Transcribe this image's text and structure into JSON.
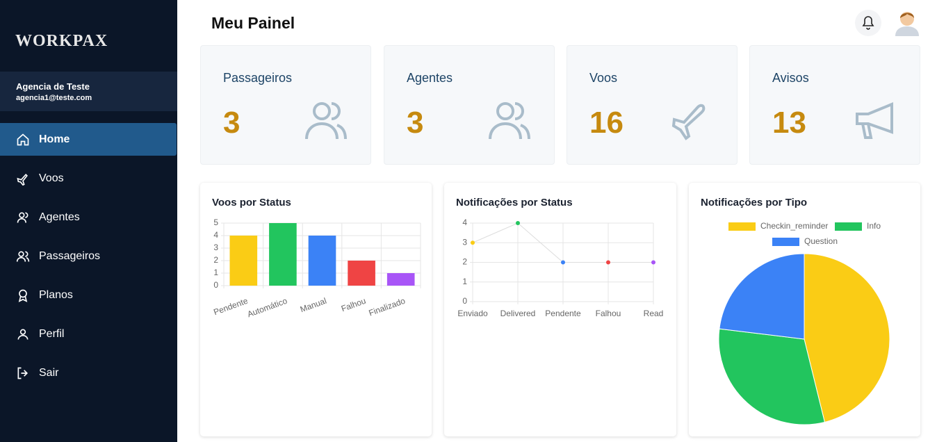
{
  "sidebar": {
    "logo": "WORKPAX",
    "agency": {
      "name": "Agencia de Teste",
      "email": "agencia1@teste.com"
    },
    "nav": [
      "Home",
      "Voos",
      "Agentes",
      "Passageiros",
      "Planos",
      "Perfil",
      "Sair"
    ]
  },
  "header": {
    "title": "Meu Painel"
  },
  "stats": [
    {
      "label": "Passageiros",
      "value": 3
    },
    {
      "label": "Agentes",
      "value": 3
    },
    {
      "label": "Voos",
      "value": 16
    },
    {
      "label": "Avisos",
      "value": 13
    }
  ],
  "charts": [
    {
      "type": "bar",
      "title": "Voos por Status",
      "categories": [
        "Pendente",
        "Automático",
        "Manual",
        "Falhou",
        "Finalizado"
      ],
      "values": [
        4,
        5,
        4,
        2,
        1
      ],
      "colors": [
        "#facc15",
        "#22c55e",
        "#3b82f6",
        "#ef4444",
        "#a855f7"
      ],
      "ylim": [
        0,
        5
      ],
      "yticks": [
        0,
        1,
        2,
        3,
        4,
        5
      ],
      "grid": true
    },
    {
      "type": "line",
      "title": "Notificações por Status",
      "categories": [
        "Enviado",
        "Delivered",
        "Pendente",
        "Falhou",
        "Read"
      ],
      "values": [
        3,
        4,
        2,
        2,
        2
      ],
      "colors": [
        "#facc15",
        "#22c55e",
        "#3b82f6",
        "#ef4444",
        "#a855f7"
      ],
      "color": "#dddddd",
      "ylim": [
        0,
        4
      ],
      "yticks": [
        0,
        1,
        2,
        3,
        4
      ],
      "grid": true
    },
    {
      "type": "pie",
      "title": "Notificações por Tipo",
      "categories": [
        "Checkin_reminder",
        "Info",
        "Question"
      ],
      "values": [
        6,
        4,
        3
      ],
      "colors": [
        "#facc15",
        "#22c55e",
        "#3b82f6"
      ]
    }
  ]
}
